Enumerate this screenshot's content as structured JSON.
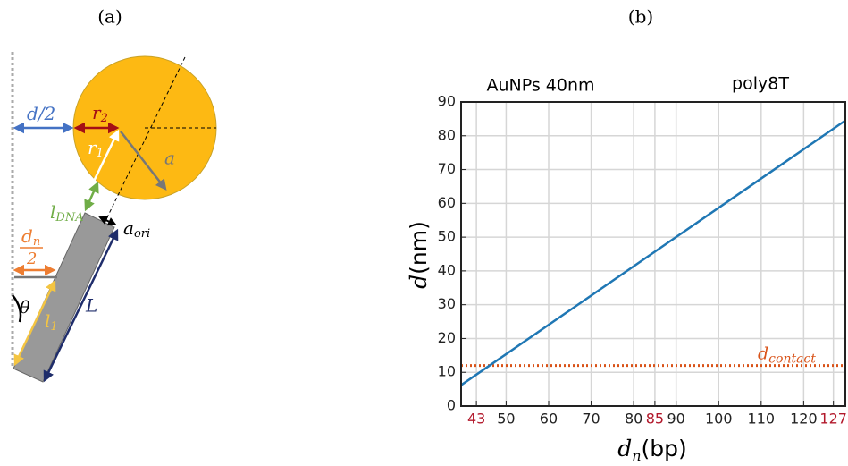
{
  "diagram": {
    "panel_label": "(a)",
    "labels": {
      "half_gap": {
        "base": "d",
        "rest": "/2"
      },
      "r2": {
        "base": "r",
        "sub": "2"
      },
      "r1": {
        "base": "r",
        "sub": "1"
      },
      "a": "a",
      "l_dna": {
        "base": "l",
        "sub": "DNA"
      },
      "a_ori": {
        "base": "a",
        "sub": "ori"
      },
      "dn_half": {
        "num_base": "d",
        "num_sub": "n",
        "den": "2"
      },
      "theta": "θ",
      "l1": {
        "base": "l",
        "sub": "1"
      },
      "L": "L"
    }
  },
  "chart_data": {
    "type": "line",
    "panel_label": "(b)",
    "annotations": [
      "AuNPs 40nm",
      "poly8T"
    ],
    "xlabel": {
      "base": "d",
      "sub": "n",
      "unit": "(bp)"
    },
    "ylabel": {
      "base": "d",
      "unit": "(nm)"
    },
    "x": [
      39.4,
      129.8
    ],
    "values": [
      6.2,
      84.5
    ],
    "color": "#1f77b4",
    "xlim": [
      39.4,
      129.8
    ],
    "ylim": [
      0,
      90
    ],
    "xticks": [
      43,
      50,
      60,
      70,
      80,
      85,
      90,
      100,
      110,
      120,
      127
    ],
    "xtick_colors": [
      "#b2182b",
      "#222222",
      "#222222",
      "#222222",
      "#222222",
      "#b2182b",
      "#222222",
      "#222222",
      "#222222",
      "#222222",
      "#b2182b"
    ],
    "yticks": [
      0,
      10,
      20,
      30,
      40,
      50,
      60,
      70,
      80,
      90
    ],
    "grid": true,
    "hlines": [
      {
        "value": 12,
        "color": "#d95319",
        "label": {
          "base": "d",
          "sub": "contact"
        }
      }
    ]
  }
}
